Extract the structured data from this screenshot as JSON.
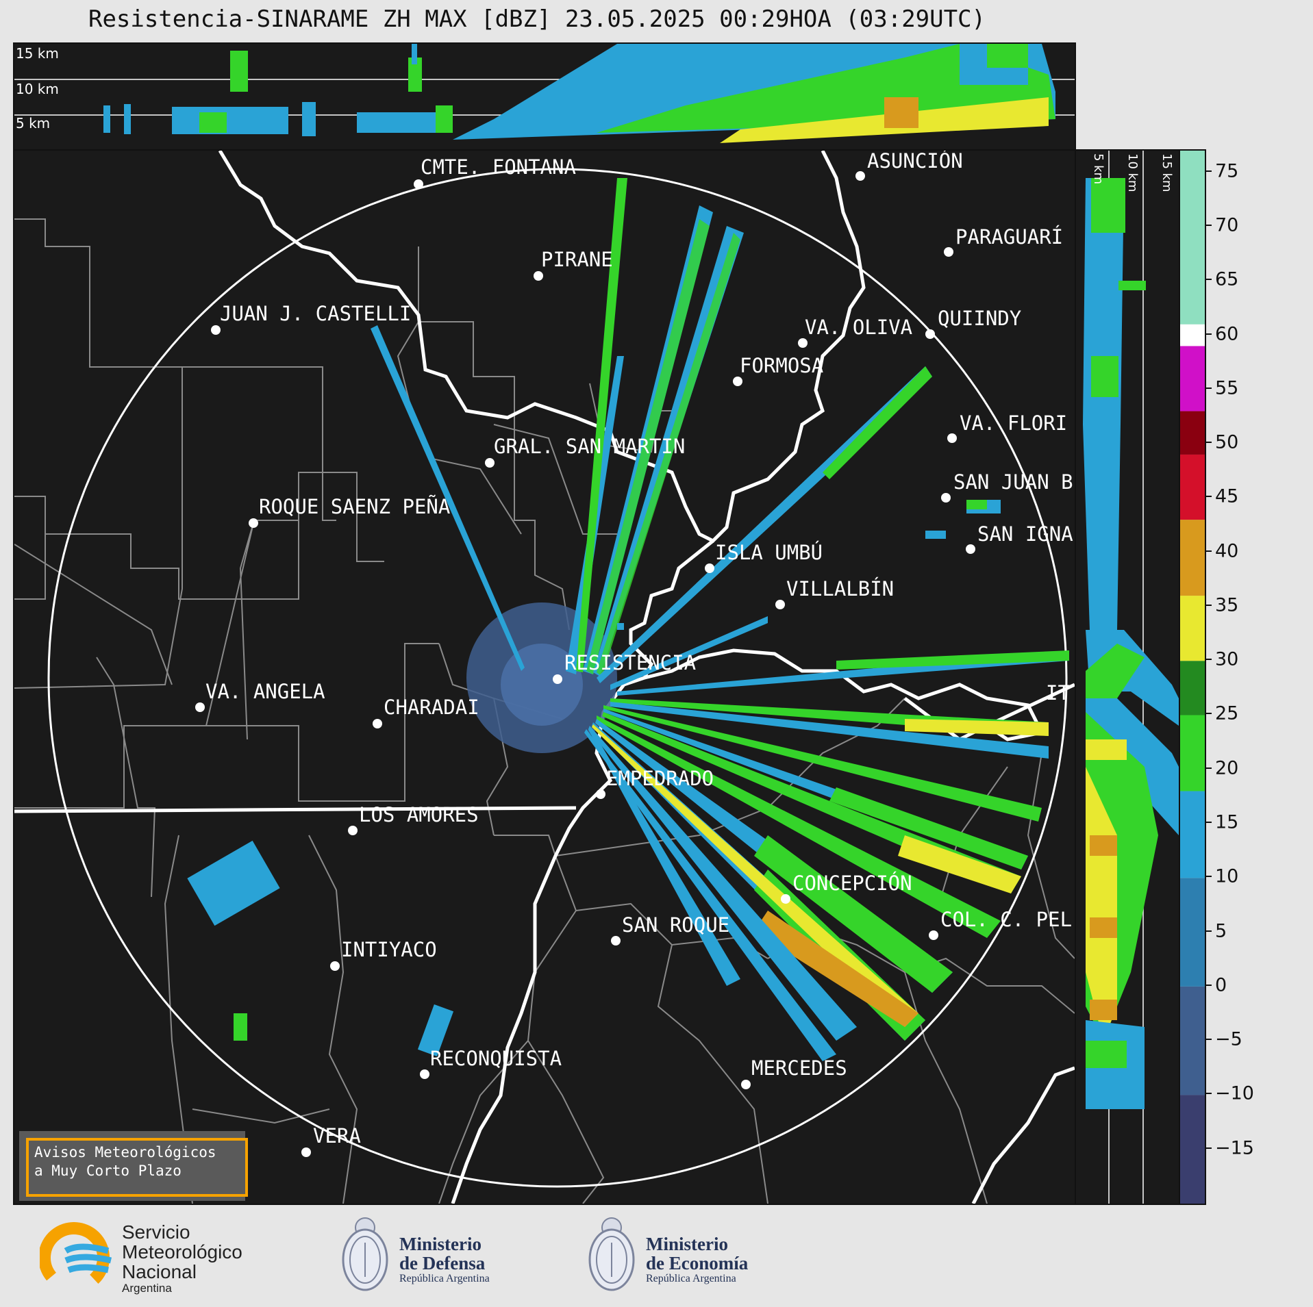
{
  "title": "Resistencia-SINARAME ZH MAX [dBZ] 23.05.2025 00:29HOA (03:29UTC)",
  "height_labels": {
    "top": [
      "15 km",
      "10 km",
      "5 km"
    ],
    "side": [
      "5 km",
      "10 km",
      "15 km"
    ]
  },
  "cities": [
    {
      "name": "CMTE. FONTANA",
      "key": "cmte-fontana"
    },
    {
      "name": "ASUNCIÓN",
      "key": "asuncion"
    },
    {
      "name": "PARAGUARÍ",
      "key": "paraguari"
    },
    {
      "name": "PIRANE",
      "key": "pirane"
    },
    {
      "name": "JUAN J. CASTELLI",
      "key": "juan-j-castelli"
    },
    {
      "name": "VA. OLIVA",
      "key": "va-oliva"
    },
    {
      "name": "QUIINDY",
      "key": "quiindy"
    },
    {
      "name": "FORMOSA",
      "key": "formosa"
    },
    {
      "name": "VA. FLORI",
      "key": "va-flori"
    },
    {
      "name": "GRAL. SAN MARTIN",
      "key": "gral-san-martin"
    },
    {
      "name": "SAN JUAN B",
      "key": "san-juan-b"
    },
    {
      "name": "ROQUE SAENZ PEÑA",
      "key": "roque-saenz-pena"
    },
    {
      "name": "SAN IGNA",
      "key": "san-igna"
    },
    {
      "name": "ISLA UMBÚ",
      "key": "isla-umbu"
    },
    {
      "name": "VILLALBÍN",
      "key": "villalbin"
    },
    {
      "name": "RESISTENCIA",
      "key": "resistencia"
    },
    {
      "name": "VA. ANGELA",
      "key": "va-angela"
    },
    {
      "name": "CHARADAI",
      "key": "charadai"
    },
    {
      "name": "IT",
      "key": "it"
    },
    {
      "name": "EMPEDRADO",
      "key": "empedrado"
    },
    {
      "name": "LOS AMORES",
      "key": "los-amores"
    },
    {
      "name": "CONCEPCIÓN",
      "key": "concepcion"
    },
    {
      "name": "SAN ROQUE",
      "key": "san-roque"
    },
    {
      "name": "COL. C. PEL",
      "key": "col-c-pel"
    },
    {
      "name": "INTIYACO",
      "key": "intiyaco"
    },
    {
      "name": "RECONQUISTA",
      "key": "reconquista"
    },
    {
      "name": "MERCEDES",
      "key": "mercedes"
    },
    {
      "name": "VERA",
      "key": "vera"
    }
  ],
  "colorbar": {
    "unit": "dBZ",
    "ticks": [
      "75",
      "70",
      "65",
      "60",
      "55",
      "50",
      "45",
      "40",
      "35",
      "30",
      "25",
      "20",
      "15",
      "10",
      "5",
      "0",
      "−5",
      "−10",
      "−15"
    ],
    "range": [
      -20,
      77
    ],
    "colors": [
      {
        "from": -20,
        "to": -10,
        "color": "#3a3e6e"
      },
      {
        "from": -10,
        "to": 0,
        "color": "#3f5f8f"
      },
      {
        "from": 0,
        "to": 10,
        "color": "#2d7fb0"
      },
      {
        "from": 10,
        "to": 18,
        "color": "#2aa3d6"
      },
      {
        "from": 18,
        "to": 25,
        "color": "#35d42a"
      },
      {
        "from": 25,
        "to": 30,
        "color": "#238a20"
      },
      {
        "from": 30,
        "to": 36,
        "color": "#e8e830"
      },
      {
        "from": 36,
        "to": 43,
        "color": "#d89a1e"
      },
      {
        "from": 43,
        "to": 49,
        "color": "#d4102a"
      },
      {
        "from": 49,
        "to": 53,
        "color": "#8a0010"
      },
      {
        "from": 53,
        "to": 59,
        "color": "#d010c8"
      },
      {
        "from": 59,
        "to": 61,
        "color": "#ffffff"
      },
      {
        "from": 61,
        "to": 77,
        "color": "#8fdfc0"
      }
    ]
  },
  "avisos": {
    "line1": "Avisos Meteorológicos",
    "line2": "a Muy Corto Plazo"
  },
  "logos": {
    "smn": {
      "line1": "Servicio",
      "line2": "Meteorológico",
      "line3": "Nacional",
      "line4": "Argentina"
    },
    "defensa": {
      "line1": "Ministerio",
      "line2": "de Defensa",
      "line3": "República Argentina"
    },
    "economia": {
      "line1": "Ministerio",
      "line2": "de Economía",
      "line3": "República Argentina"
    }
  }
}
